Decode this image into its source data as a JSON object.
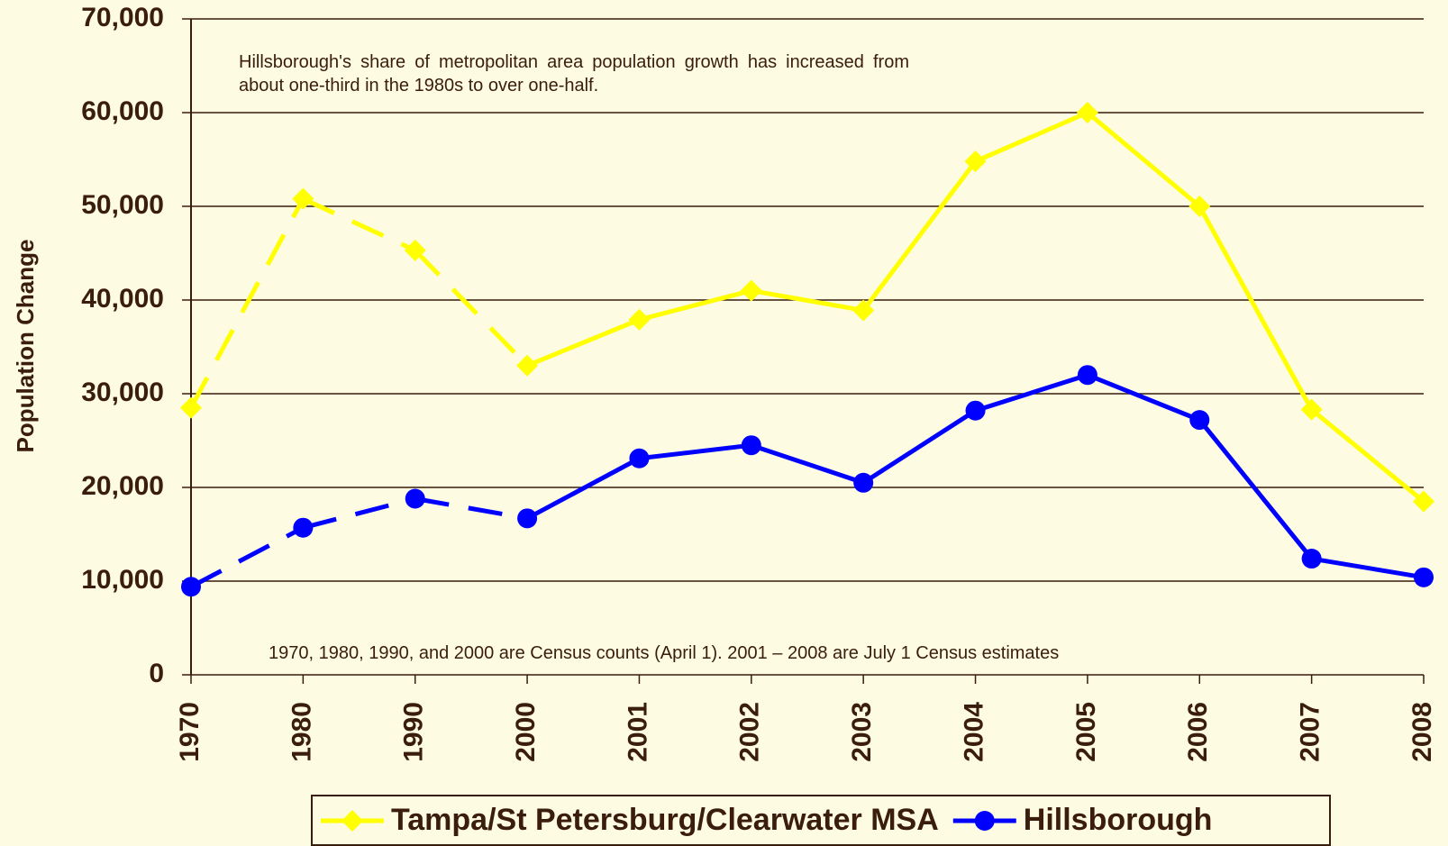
{
  "chart_data": {
    "type": "line",
    "y_label": "Population Change",
    "annotations": [
      "Hillsborough's share of metropolitan area population growth has increased from about one-third in the 1980s to over one-half.",
      "1970, 1980, 1990, and 2000 are Census counts (April 1).  2001 – 2008 are July 1 Census estimates"
    ],
    "categories": [
      "1970",
      "1980",
      "1990",
      "2000",
      "2001",
      "2002",
      "2003",
      "2004",
      "2005",
      "2006",
      "2007",
      "2008"
    ],
    "series": [
      {
        "name": "Tampa/St Petersburg/Clearwater MSA",
        "color": "#ffff00",
        "marker": "diamond",
        "values": [
          28500,
          50800,
          45300,
          33000,
          37900,
          41000,
          38900,
          54800,
          60000,
          50000,
          28300,
          18500
        ]
      },
      {
        "name": "Hillsborough",
        "color": "#0000ff",
        "marker": "circle",
        "values": [
          9400,
          15700,
          18800,
          16700,
          23100,
          24500,
          20500,
          28200,
          32000,
          27200,
          12400,
          10400
        ]
      }
    ],
    "dashed_through": 3,
    "ylim": [
      0,
      70000
    ],
    "yticks": [
      0,
      {
        "value": 10000,
        "label": "10,000"
      },
      {
        "value": 20000,
        "label": "20,000"
      },
      {
        "value": 30000,
        "label": "30,000"
      },
      {
        "value": 40000,
        "label": "40,000"
      },
      {
        "value": 50000,
        "label": "50,000"
      },
      {
        "value": 60000,
        "label": "60,000"
      },
      {
        "value": 70000,
        "label": "70,000"
      }
    ],
    "grid": true,
    "legend": "bottom"
  }
}
